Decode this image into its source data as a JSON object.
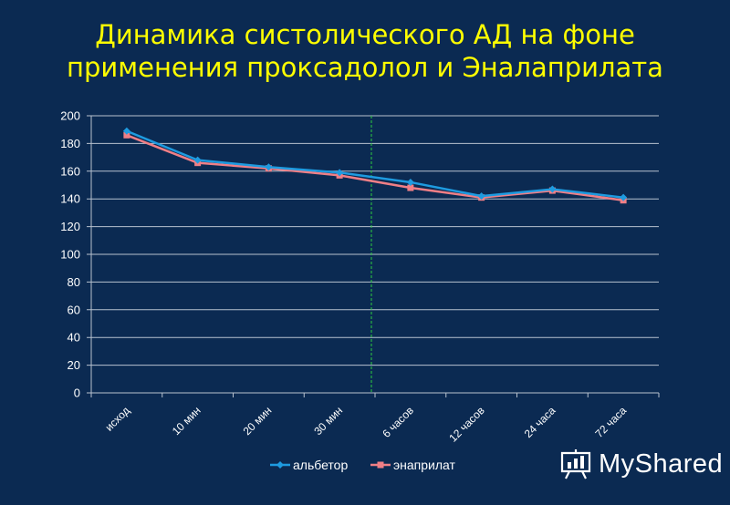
{
  "slide": {
    "title_line1": "Динамика систолического АД на фоне",
    "title_line2": "применения проксадолол и Эналаприлата",
    "title_color": "#ffff00",
    "background": "#0b2a52"
  },
  "chart_data": {
    "type": "line",
    "categories": [
      "исход",
      "10 мин",
      "20 мин",
      "30 мин",
      "6 часов",
      "12 часов",
      "24 часа",
      "72 часа"
    ],
    "series": [
      {
        "name": "альбетор",
        "color": "#1e9be0",
        "marker": "diamond",
        "values": [
          189,
          168,
          163,
          159,
          152,
          142,
          147,
          141
        ]
      },
      {
        "name": "энаприлат",
        "color": "#f07f86",
        "marker": "square",
        "values": [
          186,
          166,
          162,
          157,
          148,
          141,
          146,
          139
        ]
      }
    ],
    "ylim": [
      0,
      200
    ],
    "yticks": [
      0,
      20,
      40,
      60,
      80,
      100,
      120,
      140,
      160,
      180,
      200
    ],
    "grid": true,
    "reference_line": {
      "after_category": "30 мин",
      "color": "#2ecc40",
      "style": "dashed"
    },
    "legend": "bottom",
    "title": "",
    "xlabel": "",
    "ylabel": ""
  },
  "watermark": {
    "brand": "MyShared"
  }
}
